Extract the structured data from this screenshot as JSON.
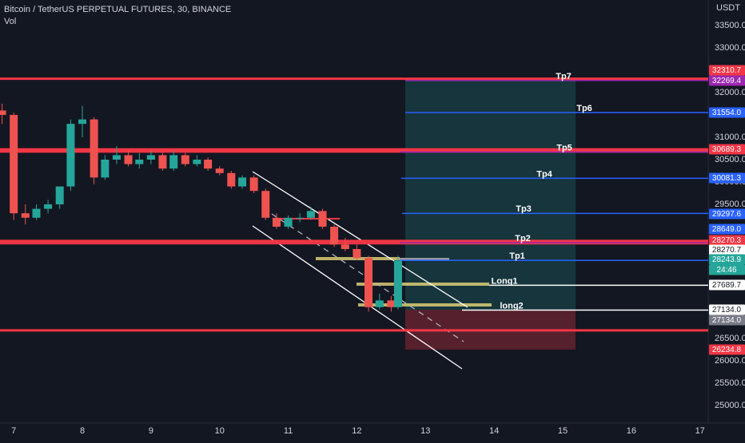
{
  "chart_data": {
    "type": "candlestick",
    "title": "Bitcoin / TetherUS PERPETUAL FUTURES, 30, BINANCE",
    "subtitle": "Vol",
    "y_unit": "USDT",
    "up_color": "#26a69a",
    "down_color": "#ef5350",
    "x": [
      6.83,
      7.0,
      7.17,
      7.33,
      7.5,
      7.67,
      7.83,
      8.0,
      8.17,
      8.33,
      8.5,
      8.67,
      8.83,
      9.0,
      9.17,
      9.33,
      9.5,
      9.67,
      9.83,
      10.0,
      10.17,
      10.33,
      10.5,
      10.67,
      10.83,
      11.0,
      11.17,
      11.33,
      11.5,
      11.67,
      11.83,
      12.0,
      12.17,
      12.33,
      12.5,
      12.6
    ],
    "open": [
      31600,
      31500,
      29300,
      29200,
      29400,
      29500,
      29900,
      31300,
      31400,
      30100,
      30500,
      30600,
      30400,
      30500,
      30600,
      30300,
      30600,
      30400,
      30500,
      30300,
      30200,
      29900,
      30100,
      29800,
      29200,
      29000,
      29200,
      29200,
      29350,
      29000,
      28600,
      28500,
      28300,
      27200,
      27350,
      27200
    ],
    "high": [
      31750,
      31550,
      29500,
      29500,
      29600,
      29900,
      31400,
      31700,
      31450,
      30600,
      30800,
      30700,
      30650,
      30700,
      30650,
      30700,
      30650,
      30600,
      30550,
      30350,
      30250,
      30150,
      30150,
      29850,
      29300,
      29250,
      29300,
      29450,
      29400,
      29050,
      28750,
      28600,
      28350,
      27500,
      27450,
      28350
    ],
    "low": [
      31300,
      29150,
      29050,
      29150,
      29300,
      29400,
      29800,
      31000,
      29950,
      30050,
      30400,
      30350,
      30300,
      30400,
      30250,
      30250,
      30350,
      30350,
      30250,
      30150,
      29850,
      29850,
      29750,
      29150,
      28950,
      28950,
      29100,
      29150,
      28950,
      28550,
      28450,
      28250,
      27100,
      27150,
      27100,
      27150
    ],
    "close": [
      31500,
      29300,
      29200,
      29400,
      29500,
      29900,
      31300,
      31400,
      30100,
      30500,
      30600,
      30400,
      30500,
      30600,
      30300,
      30600,
      30400,
      30500,
      30300,
      30200,
      29900,
      30100,
      29800,
      29200,
      29000,
      29200,
      29200,
      29350,
      29000,
      28600,
      28500,
      28300,
      27200,
      27350,
      27200,
      28243.9
    ],
    "xlim": [
      6.8,
      17.12
    ],
    "xticks": [
      7,
      8,
      9,
      10,
      11,
      12,
      13,
      14,
      15,
      16,
      17
    ],
    "ylim": [
      24643,
      34071
    ],
    "yticks": [
      {
        "value": 33500,
        "label": "33500.0"
      },
      {
        "value": 33000,
        "label": "33000.0"
      },
      {
        "value": 32000,
        "label": "32000.0"
      },
      {
        "value": 31000,
        "label": "31000.0"
      },
      {
        "value": 30500,
        "label": "30500.0"
      },
      {
        "value": 30000,
        "label": "30000.0"
      },
      {
        "value": 29500,
        "label": "29500.0"
      },
      {
        "value": 26500,
        "label": "26500.0"
      },
      {
        "value": 26000,
        "label": "26000.0"
      },
      {
        "value": 25500,
        "label": "25500.0"
      },
      {
        "value": 25000,
        "label": "25000.0"
      }
    ],
    "grid": false,
    "zones": [
      {
        "value": 32310.7,
        "color": "#f23645"
      },
      {
        "value": 30730,
        "color": "#f23645"
      },
      {
        "value": 30680,
        "color": "#f23645"
      },
      {
        "value": 28680,
        "color": "#f23645"
      },
      {
        "value": 28630,
        "color": "#f23645"
      },
      {
        "value": 26680,
        "color": "#f23645"
      }
    ],
    "levels": [
      {
        "name": "Tp7",
        "value": 32269.4,
        "color": "#9c27b0"
      },
      {
        "name": "Tp6",
        "value": 31554,
        "color": "#2962ff"
      },
      {
        "name": "Tp5",
        "value": 30670,
        "color": "#9c27b0"
      },
      {
        "name": "Tp4",
        "value": 30081.3,
        "color": "#2962ff"
      },
      {
        "name": "Tp3",
        "value": 29297.6,
        "color": "#2962ff"
      },
      {
        "name": "Tp2",
        "value": 28640,
        "color": "#9c27b0"
      },
      {
        "name": "Tp1",
        "value": 28245,
        "color": "#2962ff"
      },
      {
        "name": "Long1",
        "value": 27689.7,
        "color": "#ffffff"
      },
      {
        "name": "long2",
        "value": 27134,
        "color": "#ffffff"
      }
    ],
    "price_tags": [
      {
        "text": "32310.7",
        "color": "#f23645"
      },
      {
        "text": "32269.4",
        "color": "#9c27b0"
      },
      {
        "text": "31554.0",
        "color": "#2962ff"
      },
      {
        "text": "30689.3",
        "color": "#f23645"
      },
      {
        "text": "30081.3",
        "color": "#2962ff"
      },
      {
        "text": "29297.6",
        "color": "#2962ff"
      },
      {
        "text": "28649.0",
        "color": "#2962ff"
      },
      {
        "text": "28270.3",
        "color": "#f23645"
      },
      {
        "text": "28270.7",
        "color": "#ffffff"
      },
      {
        "text": "28243.9",
        "color": "#26a69a"
      },
      {
        "text": "24:46",
        "color": "#26a69a"
      },
      {
        "text": "27689.7",
        "color": "#ffffff"
      },
      {
        "text": "27134.0",
        "color": "#ffffff"
      },
      {
        "text": "27134.0",
        "color": "#787b86"
      },
      {
        "text": "26234.8",
        "color": "#f23645"
      }
    ]
  }
}
